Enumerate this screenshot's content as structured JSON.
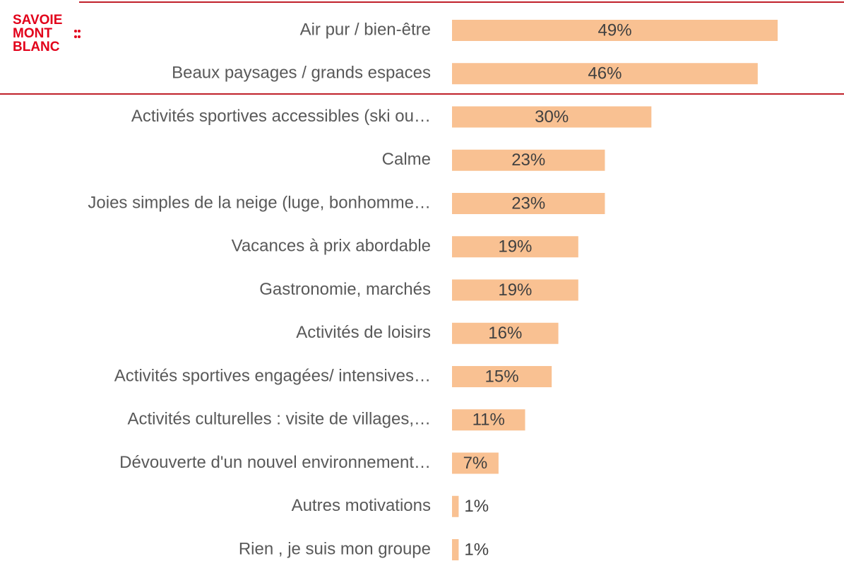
{
  "logo": [
    "SAVOIE",
    "MONT",
    "BLANC"
  ],
  "chart_data": {
    "type": "bar",
    "categories": [
      "Air pur / bien-être",
      "Beaux paysages / grands espaces",
      "Activités sportives accessibles (ski ou…",
      "Calme",
      "Joies simples de la neige (luge, bonhomme…",
      "Vacances à prix abordable",
      "Gastronomie, marchés",
      "Activités de loisirs",
      "Activités sportives engagées/ intensives…",
      "Activités culturelles : visite de villages,…",
      "Dévouverte d'un nouvel environnement…",
      "Autres motivations",
      "Rien , je suis mon groupe"
    ],
    "values": [
      49,
      46,
      30,
      23,
      23,
      19,
      19,
      16,
      15,
      11,
      7,
      1,
      1
    ],
    "value_labels": [
      "49%",
      "46%",
      "30%",
      "23%",
      "23%",
      "19%",
      "19%",
      "16%",
      "15%",
      "11%",
      "7%",
      "1%",
      "1%"
    ],
    "color": "#f9c192"
  }
}
